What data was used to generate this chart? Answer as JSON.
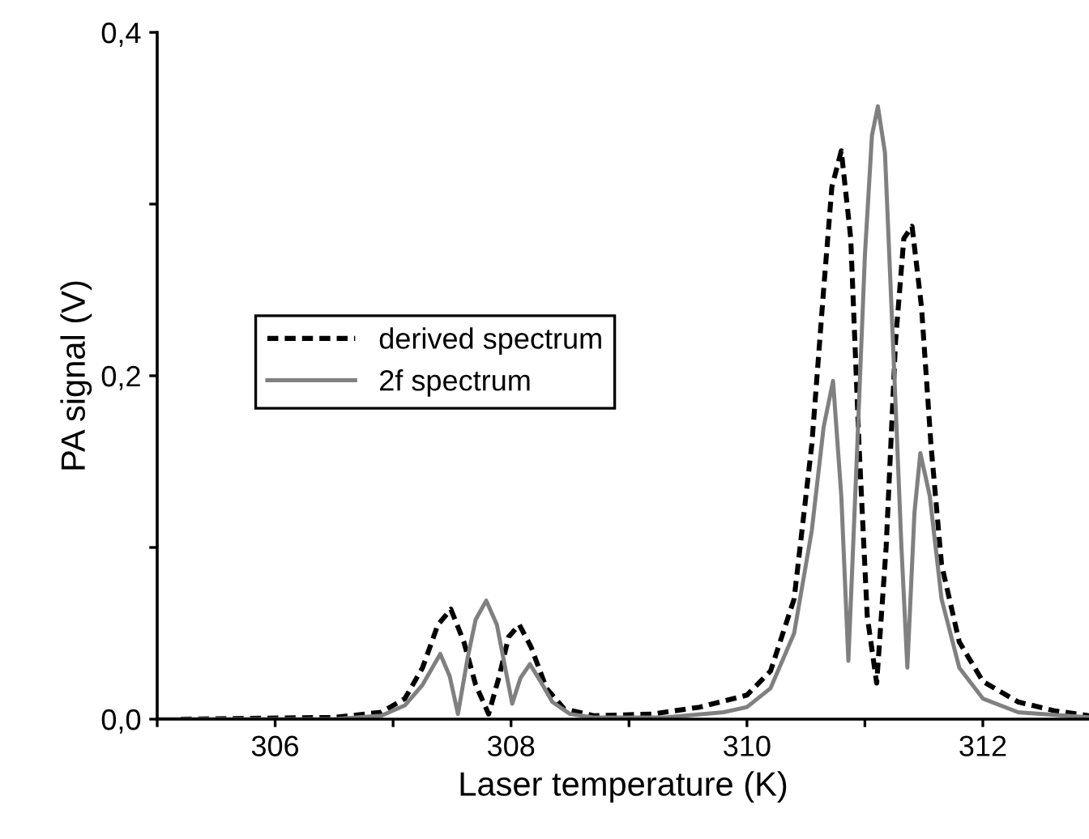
{
  "chart_data": {
    "type": "line",
    "xlabel": "Laser temperature (K)",
    "ylabel": "PA signal (V)",
    "xlim": [
      305.0,
      312.9
    ],
    "ylim": [
      0,
      0.4
    ],
    "xticks": [
      {
        "value": 305,
        "label": null
      },
      306,
      {
        "value": 307,
        "label": null
      },
      308,
      {
        "value": 309,
        "label": null
      },
      310,
      {
        "value": 311,
        "label": null
      },
      312
    ],
    "yticks": [
      {
        "value": 0,
        "label": "0,0"
      },
      {
        "value": 0.1,
        "label": null
      },
      {
        "value": 0.2,
        "label": "0,2"
      },
      {
        "value": 0.3,
        "label": null
      },
      {
        "value": 0.4,
        "label": "0,4"
      }
    ],
    "grid": false,
    "legend": "left",
    "marker": "none",
    "series": [
      {
        "name": "derived spectrum",
        "color": "#000000",
        "line_style": "dashed",
        "x": [
          305.2,
          306.5,
          306.9,
          307.1,
          307.25,
          307.38,
          307.49,
          307.6,
          307.7,
          307.81,
          307.9,
          307.98,
          308.07,
          308.17,
          308.3,
          308.45,
          308.7,
          309.2,
          309.6,
          310.0,
          310.2,
          310.4,
          310.55,
          310.65,
          310.72,
          310.8,
          310.88,
          310.95,
          311.02,
          311.1,
          311.18,
          311.26,
          311.33,
          311.4,
          311.48,
          311.56,
          311.65,
          311.8,
          312.0,
          312.3,
          312.6,
          312.9
        ],
        "values": [
          0,
          0.001,
          0.004,
          0.012,
          0.03,
          0.055,
          0.064,
          0.045,
          0.02,
          0.003,
          0.025,
          0.048,
          0.055,
          0.042,
          0.018,
          0.006,
          0.002,
          0.003,
          0.007,
          0.014,
          0.028,
          0.07,
          0.16,
          0.25,
          0.31,
          0.331,
          0.28,
          0.16,
          0.06,
          0.021,
          0.1,
          0.22,
          0.28,
          0.287,
          0.24,
          0.16,
          0.09,
          0.045,
          0.022,
          0.01,
          0.005,
          0.002
        ]
      },
      {
        "name": "2f spectrum",
        "color": "#808080",
        "line_style": "solid",
        "x": [
          305.0,
          306.5,
          306.9,
          307.1,
          307.25,
          307.4,
          307.48,
          307.55,
          307.63,
          307.7,
          307.79,
          307.88,
          307.95,
          308.01,
          308.08,
          308.16,
          308.25,
          308.35,
          308.5,
          308.7,
          309.3,
          309.8,
          310.0,
          310.2,
          310.4,
          310.55,
          310.65,
          310.73,
          310.8,
          310.86,
          310.93,
          311.0,
          311.06,
          311.11,
          311.17,
          311.25,
          311.31,
          311.36,
          311.42,
          311.47,
          311.55,
          311.65,
          311.8,
          312.0,
          312.3,
          312.9
        ],
        "values": [
          0,
          0,
          0.002,
          0.008,
          0.02,
          0.038,
          0.025,
          0.003,
          0.035,
          0.058,
          0.069,
          0.055,
          0.03,
          0.009,
          0.024,
          0.032,
          0.022,
          0.01,
          0.003,
          0.001,
          0.001,
          0.004,
          0.007,
          0.018,
          0.05,
          0.11,
          0.17,
          0.197,
          0.13,
          0.034,
          0.15,
          0.27,
          0.34,
          0.357,
          0.33,
          0.2,
          0.1,
          0.03,
          0.12,
          0.155,
          0.13,
          0.07,
          0.03,
          0.012,
          0.004,
          0.001
        ]
      }
    ]
  }
}
